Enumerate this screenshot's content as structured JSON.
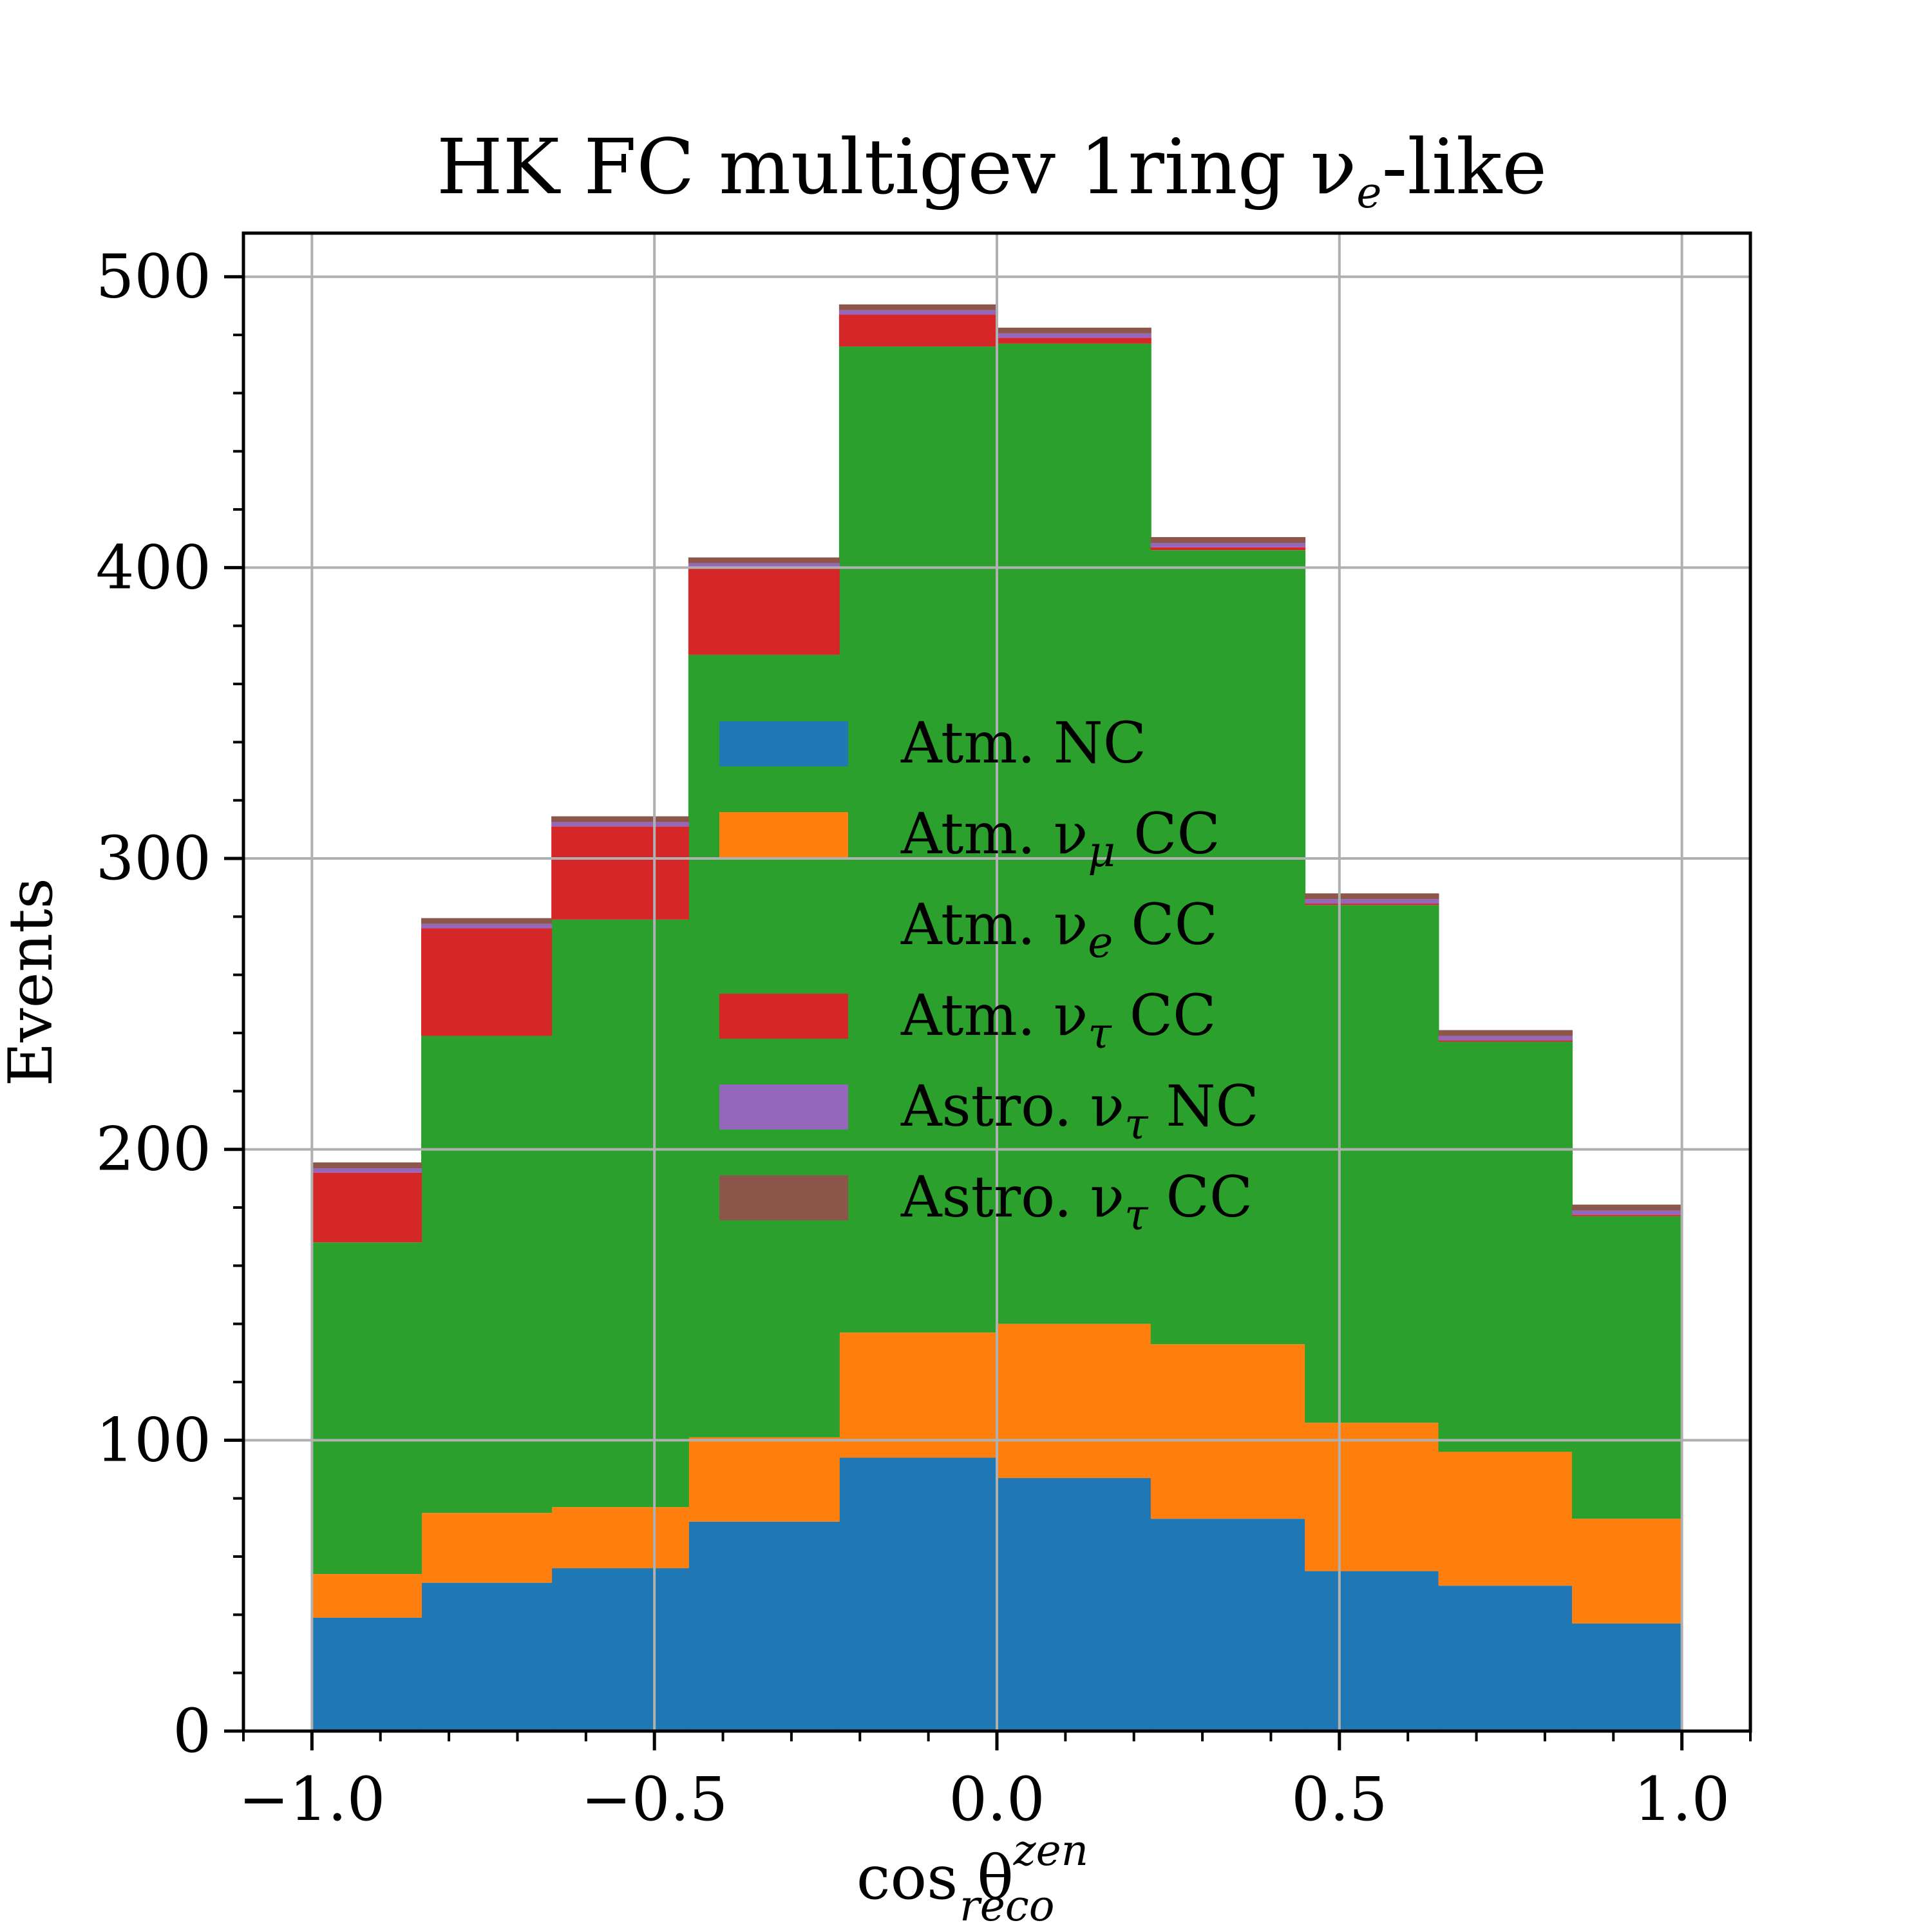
{
  "chart_data": {
    "type": "bar",
    "stacked": true,
    "histogram": true,
    "title": "HK FC multigev 1ring νₑ-like",
    "title_parts": {
      "main": "HK FC multigev 1ring ν",
      "sub": "e",
      "tail": "-like"
    },
    "xlabel": "cos θ^{zen}_{reco}",
    "xlabel_parts": {
      "main": "cos θ",
      "sup": "zen",
      "sub": "reco"
    },
    "ylabel": "Events",
    "xlim": [
      -1.1,
      1.1
    ],
    "ylim": [
      0,
      515
    ],
    "grid": true,
    "legend_position": "center",
    "x_ticks": [
      -1.0,
      -0.5,
      0.0,
      0.5,
      1.0
    ],
    "x_tick_labels": [
      "−1.0",
      "−0.5",
      "0.0",
      "0.5",
      "1.0"
    ],
    "y_ticks": [
      0,
      100,
      200,
      300,
      400,
      500
    ],
    "y_tick_labels": [
      "0",
      "100",
      "200",
      "300",
      "400",
      "500"
    ],
    "bin_edges": [
      -1.0,
      -0.84,
      -0.65,
      -0.45,
      -0.23,
      0.0,
      0.225,
      0.45,
      0.645,
      0.84,
      1.0
    ],
    "series": [
      {
        "name": "Atm. NC",
        "legend_main": "Atm. NC",
        "legend_sub": "",
        "legend_tail": "",
        "color": "#1f77b4",
        "values": [
          39,
          51,
          56,
          72,
          94,
          87,
          73,
          55,
          50,
          37
        ]
      },
      {
        "name": "Atm. νμ CC",
        "legend_main": "Atm. ν",
        "legend_sub": "μ",
        "legend_tail": " CC",
        "color": "#ff7f0e",
        "values": [
          15,
          24,
          21,
          29,
          43,
          53,
          60,
          51,
          46,
          36
        ]
      },
      {
        "name": "Atm. νe CC",
        "legend_main": "Atm. ν",
        "legend_sub": "e",
        "legend_tail": " CC",
        "color": "#2ca02c",
        "values": [
          114,
          164,
          202,
          269,
          339,
          337,
          273,
          178,
          141,
          104
        ]
      },
      {
        "name": "Atm. ντ CC",
        "legend_main": "Atm. ν",
        "legend_sub": "τ",
        "legend_tail": " CC",
        "color": "#d62728",
        "values": [
          24,
          37,
          32,
          30,
          11,
          2,
          1,
          0.5,
          0.5,
          0.5
        ]
      },
      {
        "name": "Astro. ντ NC",
        "legend_main": "Astro. ν",
        "legend_sub": "τ",
        "legend_tail": " NC",
        "color": "#9467bd",
        "values": [
          1.5,
          1.5,
          1.5,
          1.5,
          1.5,
          1.5,
          1.5,
          1.5,
          1.5,
          1.5
        ]
      },
      {
        "name": "Astro. ντ CC",
        "legend_main": "Astro. ν",
        "legend_sub": "τ",
        "legend_tail": " CC",
        "color": "#8c564b",
        "values": [
          2,
          2,
          2,
          2,
          2,
          2,
          2,
          2,
          2,
          2
        ]
      }
    ]
  }
}
